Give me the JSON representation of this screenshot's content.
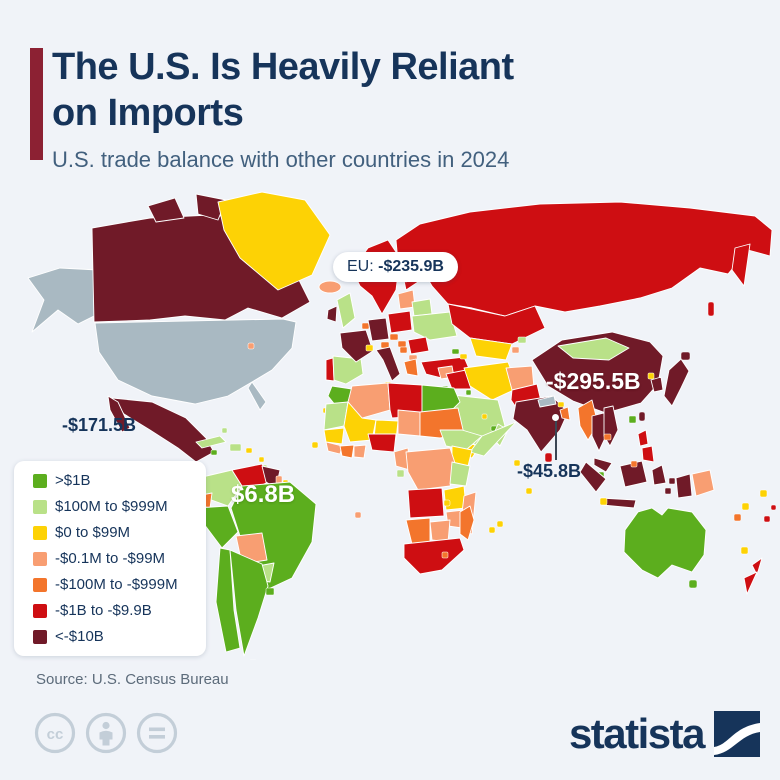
{
  "header": {
    "title_line1": "The U.S. Is Heavily Reliant",
    "title_line2": "on Imports",
    "subtitle": "U.S. trade balance with other countries in 2024"
  },
  "legend": {
    "items": [
      {
        "label": ">$1B",
        "palette_key": "pos_gt_1b"
      },
      {
        "label": "$100M to $999M",
        "palette_key": "pos_100m"
      },
      {
        "label": "$0 to $99M",
        "palette_key": "pos_0"
      },
      {
        "label": "-$0.1M to -$99M",
        "palette_key": "neg_small"
      },
      {
        "label": "-$100M to -$999M",
        "palette_key": "neg_100m"
      },
      {
        "label": "-$1B to -$9.9B",
        "palette_key": "neg_1b"
      },
      {
        "label": "<-$10B",
        "palette_key": "neg_10b"
      }
    ]
  },
  "annotations": {
    "eu_prefix": "EU: ",
    "eu_value": "-$235.9B",
    "china": "-$295.5B",
    "mexico": "-$171.5B",
    "brazil": "$6.8B",
    "india": "-$45.8B"
  },
  "footer": {
    "source": "Source: U.S. Census Bureau",
    "brand": "statista"
  },
  "palette": {
    "pos_gt_1b": "#5cae1e",
    "pos_100m": "#b9e188",
    "pos_0": "#fdd205",
    "neg_small": "#f89e72",
    "neg_100m": "#f3752c",
    "neg_1b": "#ce0e12",
    "neg_10b": "#701a28",
    "nodata": "#a9b9c2",
    "bg": "#f0f3f8",
    "navy": "#16345a",
    "subtitle": "#42607e",
    "accent": "#8c2133",
    "source_gray": "#5c6b7a",
    "icon_gray": "#c3ced8"
  },
  "chart_data": {
    "type": "choropleth",
    "title": "The U.S. Is Heavily Reliant on Imports",
    "subtitle": "U.S. trade balance with other countries in 2024",
    "legend_buckets": [
      {
        "label": ">$1B",
        "color": "#5cae1e"
      },
      {
        "label": "$100M to $999M",
        "color": "#b9e188"
      },
      {
        "label": "$0 to $99M",
        "color": "#fdd205"
      },
      {
        "label": "-$0.1M to -$99M",
        "color": "#f89e72"
      },
      {
        "label": "-$100M to -$999M",
        "color": "#f3752c"
      },
      {
        "label": "-$1B to -$9.9B",
        "color": "#ce0e12"
      },
      {
        "label": "<-$10B",
        "color": "#701a28"
      }
    ],
    "annotations": [
      {
        "region": "EU",
        "value": "-$235.9B"
      },
      {
        "region": "China",
        "value": "-$295.5B"
      },
      {
        "region": "Mexico",
        "value": "-$171.5B"
      },
      {
        "region": "Brazil",
        "value": "$6.8B"
      },
      {
        "region": "India",
        "value": "-$45.8B"
      }
    ],
    "region_buckets": {
      "United States": "no data (reporting country)",
      "Canada": "<-$10B",
      "Mexico": "<-$10B",
      "Greenland": "$0 to $99M",
      "Iceland": "-$0.1M to -$99M",
      "Brazil": ">$1B",
      "Colombia": "$100M to $999M",
      "Venezuela": "-$1B to -$9.9B",
      "Ecuador": "-$100M to -$999M",
      "Peru": ">$1B",
      "Bolivia": "-$0.1M to -$99M",
      "Chile": ">$1B",
      "Argentina": ">$1B",
      "United Kingdom": "$100M to $999M",
      "Ireland": "<-$10B",
      "France": "<-$10B",
      "Germany": "<-$10B",
      "Italy": "<-$10B",
      "Spain": "$100M to $999M",
      "Portugal": "-$1B to -$9.9B",
      "Norway": "-$1B to -$9.9B",
      "Sweden": "-$1B to -$9.9B",
      "Finland": "-$1B to -$9.9B",
      "Poland": "-$1B to -$9.9B",
      "Ukraine": "$100M to $999M",
      "Belarus": "$100M to $999M",
      "Romania": "-$1B to -$9.9B",
      "Turkey": "-$1B to -$9.9B",
      "Russia": "-$1B to -$9.9B",
      "Kazakhstan": "-$1B to -$9.9B",
      "Mongolia": "$100M to $999M",
      "China": "<-$10B",
      "Japan": "<-$10B",
      "South Korea": "<-$10B",
      "Taiwan": "<-$10B",
      "India": "<-$10B",
      "Pakistan": "-$1B to -$9.9B",
      "Afghanistan": "-$0.1M to -$99M",
      "Iran": "$0 to $99M",
      "Iraq": "-$1B to -$9.9B",
      "Saudi Arabia": "$100M to $999M",
      "Myanmar": "-$100M to -$999M",
      "Thailand": "<-$10B",
      "Vietnam": "<-$10B",
      "Indonesia": "<-$10B",
      "Malaysia": "<-$10B",
      "Philippines": "-$1B to -$9.9B",
      "Singapore": ">$1B",
      "Australia": ">$1B",
      "New Zealand": "-$1B to -$9.9B",
      "Papua New Guinea": "-$0.1M to -$99M",
      "Egypt": ">$1B",
      "Morocco": ">$1B",
      "Algeria": "-$0.1M to -$99M",
      "Libya": "-$1B to -$9.9B",
      "Nigeria": "-$1B to -$9.9B",
      "Ethiopia": "$100M to $999M",
      "Somalia": "$100M to $999M",
      "Kenya": "$0 to $99M",
      "DR Congo": "-$0.1M to -$99M",
      "Angola": "-$1B to -$9.9B",
      "Tanzania": "$100M to $999M",
      "Namibia": "-$100M to -$999M",
      "Botswana": "-$0.1M to -$99M",
      "South Africa": "-$1B to -$9.9B",
      "Madagascar": "-$100M to -$999M"
    }
  }
}
